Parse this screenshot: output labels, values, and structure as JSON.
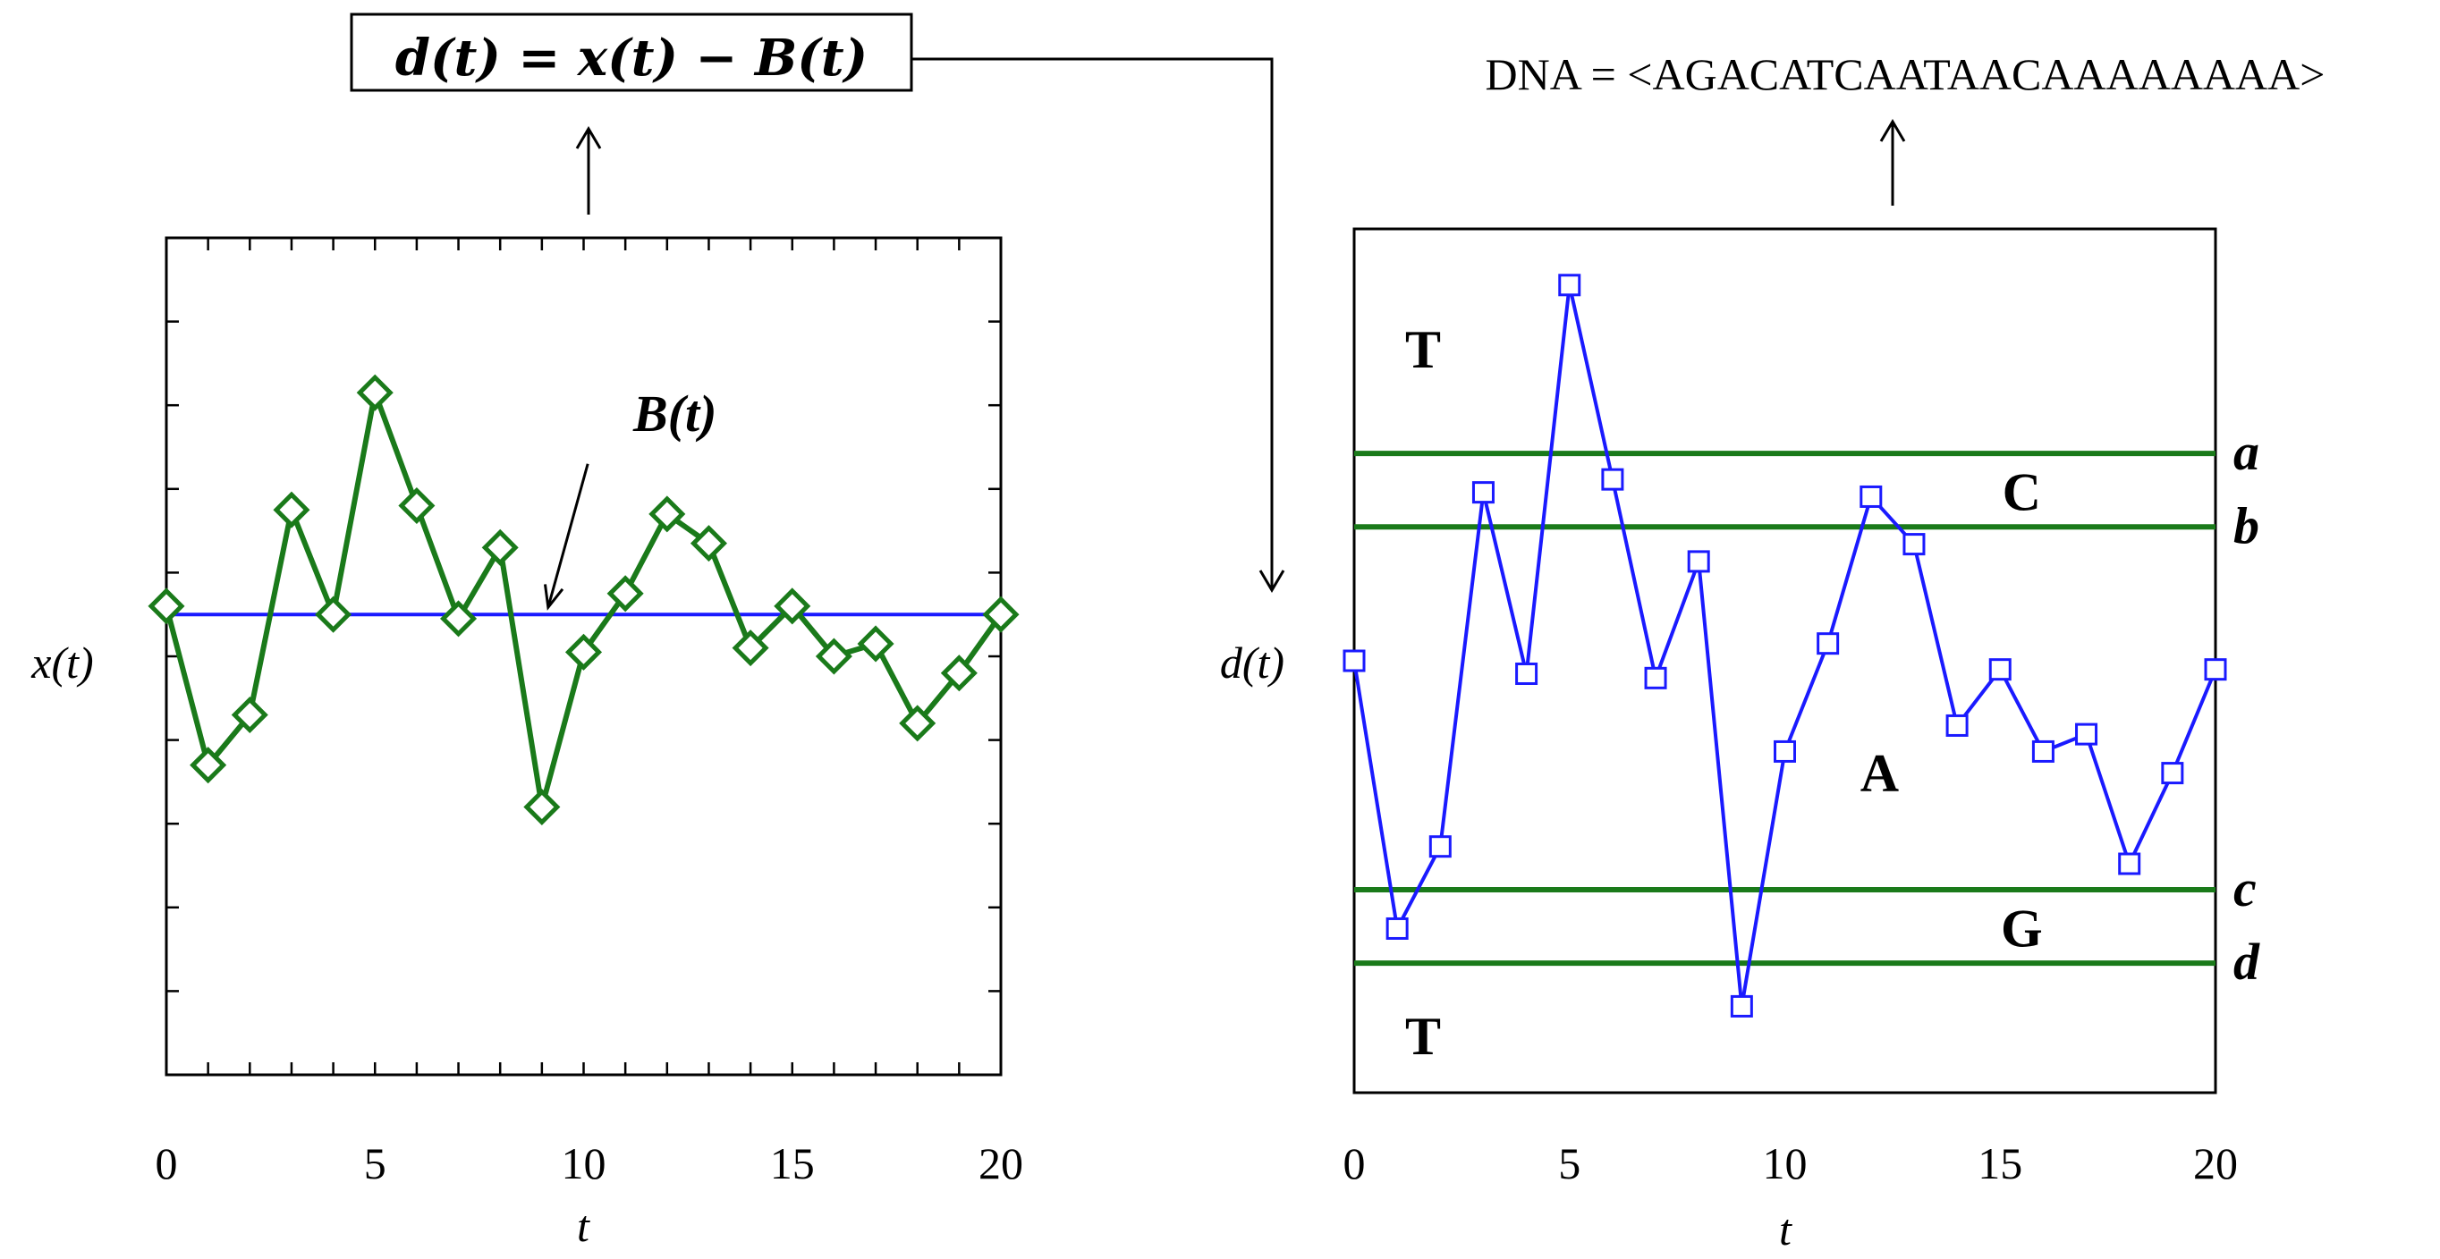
{
  "header": {
    "equation": "d(t) = x(t) − B(t)",
    "dna_text": "DNA = <AGACATCAATAACAAAAAAAA>"
  },
  "colors": {
    "x_series": "#1a7a1a",
    "baseline": "#1a1aff",
    "d_series": "#1a1aff",
    "threshold": "#1a7a1a",
    "axis": "#000000"
  },
  "chart_data": [
    {
      "type": "line",
      "xlabel": "t",
      "ylabel": "x(t)",
      "xlim": [
        0,
        20
      ],
      "ylim": [
        -5,
        5
      ],
      "x_ticks": [
        "0",
        "5",
        "10",
        "15",
        "20"
      ],
      "x_minor_ticks": [
        0,
        1,
        2,
        3,
        4,
        5,
        6,
        7,
        8,
        9,
        10,
        11,
        12,
        13,
        14,
        15,
        16,
        17,
        18,
        19,
        20
      ],
      "y_tick_values": [
        -4,
        -3,
        -2,
        -1,
        0,
        1,
        2,
        3,
        4
      ],
      "series": [
        {
          "name": "",
          "marker": "diamond",
          "x": [
            0,
            1,
            2,
            3,
            4,
            5,
            6,
            7,
            8,
            9,
            10,
            11,
            12,
            13,
            14,
            15,
            16,
            17,
            18,
            19,
            20
          ],
          "y": [
            0.6,
            -1.3,
            -0.7,
            1.75,
            0.5,
            3.15,
            1.8,
            0.45,
            1.3,
            -1.8,
            0.05,
            0.75,
            1.7,
            1.35,
            0.1,
            0.6,
            0.0,
            0.15,
            -0.8,
            -0.2,
            0.5
          ]
        },
        {
          "name": "B(t)",
          "x": [
            0,
            20
          ],
          "y": [
            0.5,
            0.5
          ]
        }
      ],
      "annotations": [
        {
          "text": "B(t)",
          "x": 10.1,
          "y": 2.3,
          "arrow_to": [
            9.15,
            0.5
          ]
        }
      ]
    },
    {
      "type": "line",
      "xlabel": "t",
      "ylabel": "d(t)",
      "xlim": [
        0,
        20
      ],
      "ylim": [
        -5,
        5
      ],
      "x_ticks": [
        "0",
        "5",
        "10",
        "15",
        "20"
      ],
      "series": [
        {
          "name": "",
          "marker": "square",
          "x": [
            0,
            1,
            2,
            3,
            4,
            5,
            6,
            7,
            8,
            9,
            10,
            11,
            12,
            13,
            14,
            15,
            16,
            17,
            18,
            19,
            20
          ],
          "y": [
            0.0,
            -3.1,
            -2.15,
            1.95,
            -0.15,
            4.35,
            2.1,
            -0.2,
            1.15,
            -4.0,
            -1.05,
            0.2,
            1.9,
            1.35,
            -0.75,
            -0.1,
            -1.05,
            -0.85,
            -2.35,
            -1.3,
            -0.1
          ]
        }
      ],
      "thresholds": [
        {
          "label": "a",
          "y": 2.4
        },
        {
          "label": "b",
          "y": 1.55
        },
        {
          "label": "c",
          "y": -2.65
        },
        {
          "label": "d",
          "y": -3.5
        }
      ],
      "regions": [
        {
          "label": "T",
          "x": 1.6,
          "y": 3.6
        },
        {
          "label": "C",
          "x": 15.5,
          "y": 1.95
        },
        {
          "label": "A",
          "x": 12.2,
          "y": -1.3
        },
        {
          "label": "G",
          "x": 15.5,
          "y": -3.1
        },
        {
          "label": "T",
          "x": 1.6,
          "y": -4.35
        }
      ]
    }
  ]
}
